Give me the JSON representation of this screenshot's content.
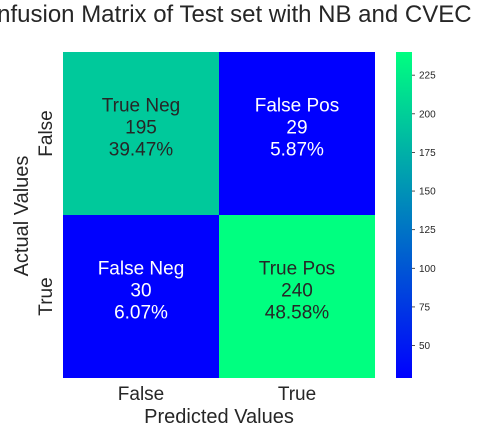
{
  "chart_data": {
    "type": "heatmap",
    "title": "Confusion Matrix of Test set with NB and CVEC",
    "xlabel": "Predicted Values",
    "ylabel": "Actual Values",
    "x_categories": [
      "False",
      "True"
    ],
    "y_categories": [
      "False",
      "True"
    ],
    "values": [
      [
        195,
        29
      ],
      [
        30,
        240
      ]
    ],
    "cell_labels": [
      [
        [
          "True Neg",
          "195",
          "39.47%"
        ],
        [
          "False Pos",
          "29",
          "5.87%"
        ]
      ],
      [
        [
          "False Neg",
          "30",
          "6.07%"
        ],
        [
          "True Pos",
          "240",
          "48.58%"
        ]
      ]
    ],
    "colormap": "winter",
    "colorbar": {
      "range": [
        29,
        240
      ],
      "ticks": [
        50,
        75,
        100,
        125,
        150,
        175,
        200,
        225
      ]
    },
    "colors": {
      "low": "#0000ff",
      "high": "#00ff80",
      "label_light": "#ffffff",
      "label_dark": "#262626"
    }
  }
}
